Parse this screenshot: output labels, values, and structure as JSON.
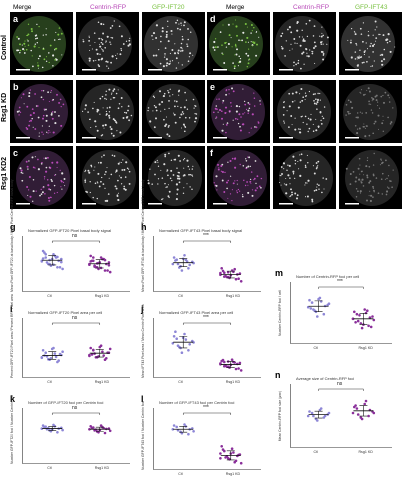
{
  "headers": {
    "left": {
      "merge": "Merge",
      "centrin": "Centrin-RFP",
      "gfp": "GFP-IFT20"
    },
    "right": {
      "merge": "Merge",
      "centrin": "Centrin-RFP",
      "gfp": "GFP-IFT43"
    }
  },
  "row_labels": {
    "control": "Control",
    "kd": "Rsg1 KD",
    "kd2": "Rsg1 KD2"
  },
  "panel_letters": {
    "a": "a",
    "b": "b",
    "c": "c",
    "d": "d",
    "e": "e",
    "f": "f",
    "g": "g",
    "h": "h",
    "i": "i",
    "j": "j",
    "k": "k",
    "l": "l",
    "m": "m",
    "n": "n"
  },
  "colors": {
    "magenta": "#b84ab8",
    "green": "#7ac142",
    "ctl_dot": "#8d86d6",
    "kd_dot": "#8a2f9a"
  },
  "chart_data": [
    {
      "id": "g",
      "type": "scatter",
      "title": "Normalized GFP-IFT20 Pixel basal body signal",
      "ylabel": "Mean Pixel GFP-IFT20 at basal body / Mean Pixel Centrin-RFP basal body",
      "categories": [
        "Ctl",
        "Rsg1 KD"
      ],
      "significance": "ns",
      "series": [
        {
          "values": [
            0.9,
            1.0,
            0.8,
            1.1,
            0.7,
            0.95,
            1.2,
            0.85,
            0.75,
            1.05,
            0.9,
            0.65,
            1.15,
            0.8,
            0.95,
            1.0,
            0.7,
            0.88,
            1.1,
            0.92,
            0.78,
            1.02,
            0.86,
            0.97
          ]
        },
        {
          "values": [
            0.8,
            0.9,
            0.7,
            1.0,
            0.6,
            0.85,
            1.05,
            0.75,
            0.65,
            0.95,
            0.8,
            0.55,
            0.9,
            0.7,
            0.85,
            0.95,
            0.6,
            0.78,
            1.0,
            0.82,
            0.68,
            0.92,
            0.76,
            0.88,
            0.72,
            0.83
          ]
        }
      ],
      "ylim": [
        0,
        1.6
      ]
    },
    {
      "id": "h",
      "type": "scatter",
      "title": "Normalized GFP-IFT43 Pixel basal body signal",
      "ylabel": "Mean Pixel GFP-IFT43 at basal body / Mean Pixel Centrin-RFP basal body",
      "categories": [
        "Ctl",
        "Rsg1 KD"
      ],
      "significance": "***",
      "series": [
        {
          "values": [
            0.6,
            0.7,
            0.55,
            0.8,
            0.5,
            0.65,
            0.75,
            0.6,
            0.45,
            0.7,
            0.58,
            0.62,
            0.68,
            0.52,
            0.72,
            0.66
          ]
        },
        {
          "values": [
            0.35,
            0.4,
            0.3,
            0.45,
            0.25,
            0.38,
            0.5,
            0.32,
            0.28,
            0.42,
            0.36,
            0.2,
            0.44,
            0.3,
            0.34,
            0.48,
            0.26,
            0.39,
            0.31,
            0.41
          ]
        }
      ],
      "ylim": [
        0,
        1.2
      ]
    },
    {
      "id": "i",
      "type": "scatter",
      "title": "Normalized GFP-IFT20 Pixel area per cell",
      "ylabel": "Percent GFP-IFT20 Pixel area / Percent RFP Pixel area",
      "categories": [
        "Ctl",
        "Rsg1 KD"
      ],
      "significance": "ns",
      "series": [
        {
          "values": [
            0.4,
            0.5,
            0.35,
            0.6,
            0.3,
            0.45,
            0.55,
            0.42,
            0.38,
            0.48,
            0.33,
            0.52,
            0.44,
            0.36,
            0.58,
            0.41,
            0.47,
            0.39
          ]
        },
        {
          "values": [
            0.45,
            0.55,
            0.4,
            0.65,
            0.35,
            0.5,
            0.6,
            0.48,
            0.42,
            0.52,
            0.38,
            0.58,
            0.46,
            0.4,
            0.62,
            0.44,
            0.5,
            0.43,
            0.56
          ]
        }
      ],
      "ylim": [
        0,
        1.2
      ]
    },
    {
      "id": "j",
      "type": "scatter",
      "title": "Normalized GFP-IFT43 Pixel area per cell",
      "ylabel": "Mean IFT43 Pixel area / Mean Centrin Pixel area",
      "categories": [
        "Ctl",
        "Rsg1 KD"
      ],
      "significance": "***",
      "series": [
        {
          "values": [
            0.7,
            0.8,
            0.6,
            0.9,
            0.55,
            0.75,
            0.85,
            0.65,
            0.5,
            0.78,
            0.68,
            0.72,
            0.95,
            0.62,
            0.82
          ]
        },
        {
          "values": [
            0.25,
            0.3,
            0.2,
            0.35,
            0.15,
            0.28,
            0.32,
            0.22,
            0.18,
            0.3,
            0.26,
            0.12,
            0.34,
            0.2,
            0.24,
            0.29,
            0.16,
            0.27,
            0.21,
            0.31
          ]
        }
      ],
      "ylim": [
        0,
        1.2
      ]
    },
    {
      "id": "k",
      "type": "scatter",
      "title": "Number of GFP-IFT20 foci per Centrin foci",
      "ylabel": "Number GFP-IFT20 foci / Number Centrin foci",
      "categories": [
        "Ctl",
        "Rsg1 KD"
      ],
      "significance": "ns",
      "series": [
        {
          "values": [
            0.9,
            0.95,
            0.85,
            1.0,
            0.8,
            0.92,
            0.98,
            0.88,
            0.83,
            0.96,
            0.9,
            0.86,
            0.94,
            0.91,
            0.87
          ]
        },
        {
          "values": [
            0.88,
            0.93,
            0.82,
            0.98,
            0.78,
            0.9,
            0.96,
            0.85,
            0.8,
            0.94,
            0.89,
            0.84,
            0.92,
            0.87,
            0.86,
            0.91
          ]
        }
      ],
      "ylim": [
        0,
        1.4
      ]
    },
    {
      "id": "l",
      "type": "scatter",
      "title": "Number of GFP-IFT43 foci per Centrin foci",
      "ylabel": "Number GFP-IFT43 foci / Number Centrin foci",
      "categories": [
        "Ctl",
        "Rsg1 KD"
      ],
      "significance": "***",
      "series": [
        {
          "values": [
            0.8,
            0.85,
            0.75,
            0.9,
            0.7,
            0.82,
            0.88,
            0.78,
            0.72,
            0.86,
            0.8,
            0.76
          ]
        },
        {
          "values": [
            0.3,
            0.35,
            0.2,
            0.4,
            0.15,
            0.28,
            0.45,
            0.22,
            0.18,
            0.32,
            0.25,
            0.1,
            0.38,
            0.24,
            0.3,
            0.12,
            0.27,
            0.2
          ]
        }
      ],
      "ylim": [
        0,
        1.2
      ]
    },
    {
      "id": "m",
      "type": "scatter",
      "title": "Number of Centrin-RFP foci per cell",
      "ylabel": "Number Centrin-RFP foci / cell",
      "categories": [
        "Ctl",
        "Rsg1 KD"
      ],
      "significance": "***",
      "series": [
        {
          "values": [
            150,
            170,
            130,
            190,
            120,
            160,
            180,
            140,
            110,
            175,
            155,
            165,
            145,
            135,
            185
          ]
        },
        {
          "values": [
            100,
            120,
            80,
            140,
            70,
            110,
            130,
            90,
            60,
            125,
            105,
            95,
            85,
            115,
            75,
            135,
            65,
            100
          ]
        }
      ],
      "ylim": [
        0,
        250
      ]
    },
    {
      "id": "n",
      "type": "scatter",
      "title": "Average size of Centrin-RFP foci",
      "ylabel": "Mean Centrin-RFP foci size (μm²)",
      "categories": [
        "Ctl",
        "Rsg1 KD"
      ],
      "significance": "ns",
      "series": [
        {
          "values": [
            0.2,
            0.22,
            0.18,
            0.24,
            0.19,
            0.21,
            0.23,
            0.2,
            0.17,
            0.25,
            0.2,
            0.22
          ]
        },
        {
          "values": [
            0.22,
            0.25,
            0.19,
            0.28,
            0.2,
            0.23,
            0.26,
            0.21,
            0.18,
            0.3,
            0.24,
            0.22,
            0.27
          ]
        }
      ],
      "ylim": [
        0,
        0.4
      ]
    }
  ]
}
